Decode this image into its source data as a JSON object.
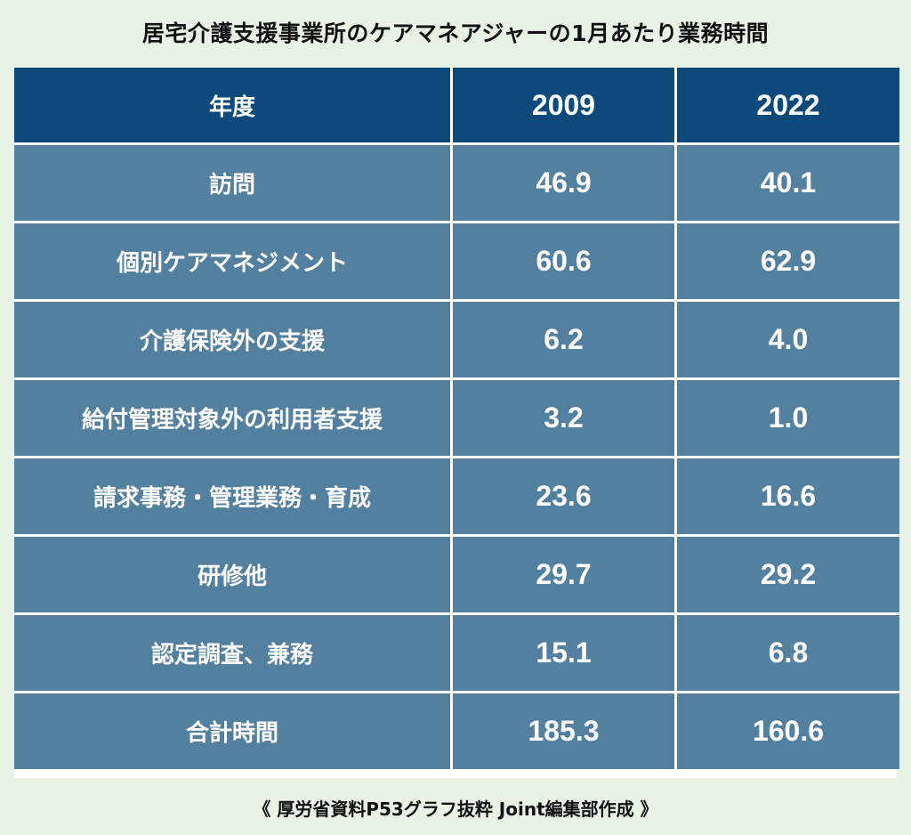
{
  "title": "居宅介護支援事業所のケアマネアジャーの1月あたり業務時間",
  "source": "《 厚労省資料P53グラフ抜粋 Joint編集部作成 》",
  "chart_data": {
    "type": "table",
    "title": "居宅介護支援事業所のケアマネアジャーの1月あたり業務時間",
    "header": [
      "年度",
      "2009",
      "2022"
    ],
    "rows": [
      {
        "label": "訪問",
        "v2009": "46.9",
        "v2022": "40.1"
      },
      {
        "label": "個別ケアマネジメント",
        "v2009": "60.6",
        "v2022": "62.9"
      },
      {
        "label": "介護保険外の支援",
        "v2009": "6.2",
        "v2022": "4.0"
      },
      {
        "label": "給付管理対象外の利用者支援",
        "v2009": "3.2",
        "v2022": "1.0"
      },
      {
        "label": "請求事務・管理業務・育成",
        "v2009": "23.6",
        "v2022": "16.6"
      },
      {
        "label": "研修他",
        "v2009": "29.7",
        "v2022": "29.2"
      },
      {
        "label": "認定調査、兼務",
        "v2009": "15.1",
        "v2022": "6.8"
      },
      {
        "label": "合計時間",
        "v2009": "185.3",
        "v2022": "160.6"
      }
    ]
  },
  "colors": {
    "background": "#e8f3e6",
    "header": "#0b4a7b",
    "cell": "#5480a0",
    "border": "#ffffff",
    "text": "#ffffff"
  }
}
